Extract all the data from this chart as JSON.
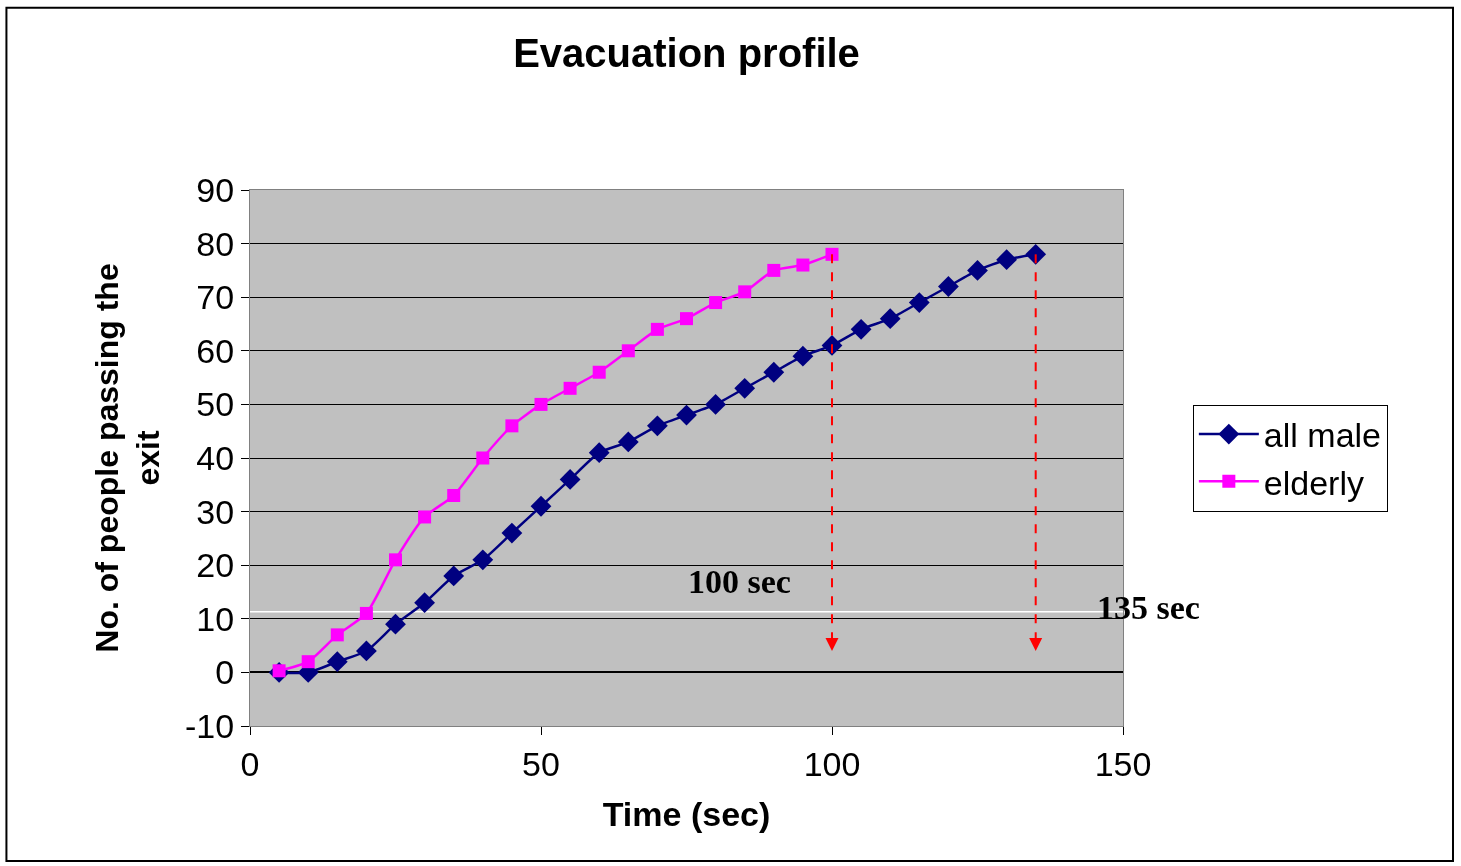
{
  "chart_data": {
    "type": "line",
    "title": "Evacuation profile",
    "xlabel": "Time (sec)",
    "ylabel": "No. of people passing the exit",
    "x": [
      5,
      10,
      15,
      20,
      25,
      30,
      35,
      40,
      45,
      50,
      55,
      60,
      65,
      70,
      75,
      80,
      85,
      90,
      95,
      100,
      105,
      110,
      115,
      120,
      125,
      130,
      135
    ],
    "series": [
      {
        "name": "all male",
        "color": "#000080",
        "marker": "diamond",
        "values": [
          0,
          0,
          2,
          4,
          9,
          13,
          18,
          21,
          26,
          31,
          36,
          41,
          43,
          46,
          48,
          50,
          53,
          56,
          59,
          61,
          64,
          66,
          69,
          72,
          75,
          77,
          78
        ]
      },
      {
        "name": "elderly",
        "color": "#ff00ff",
        "marker": "square",
        "values": [
          0.3,
          2,
          7,
          11,
          21,
          29,
          33,
          40,
          46,
          50,
          53,
          56,
          60,
          64,
          66,
          69,
          71,
          75,
          76,
          78,
          null,
          null,
          null,
          null,
          null,
          null,
          null
        ]
      }
    ],
    "xlim": [
      0,
      150
    ],
    "xticks": [
      0,
      50,
      100,
      150
    ],
    "ylim": [
      -10,
      90
    ],
    "yticks": [
      -10,
      0,
      10,
      20,
      30,
      40,
      50,
      60,
      70,
      80,
      90
    ],
    "grid": "y",
    "legend": "right",
    "line_style": "solid",
    "ref_lines": [
      {
        "axis": "y",
        "value": 11.3,
        "color": "#ffffff"
      }
    ],
    "annotations": [
      "100 sec",
      "135 sec"
    ]
  }
}
